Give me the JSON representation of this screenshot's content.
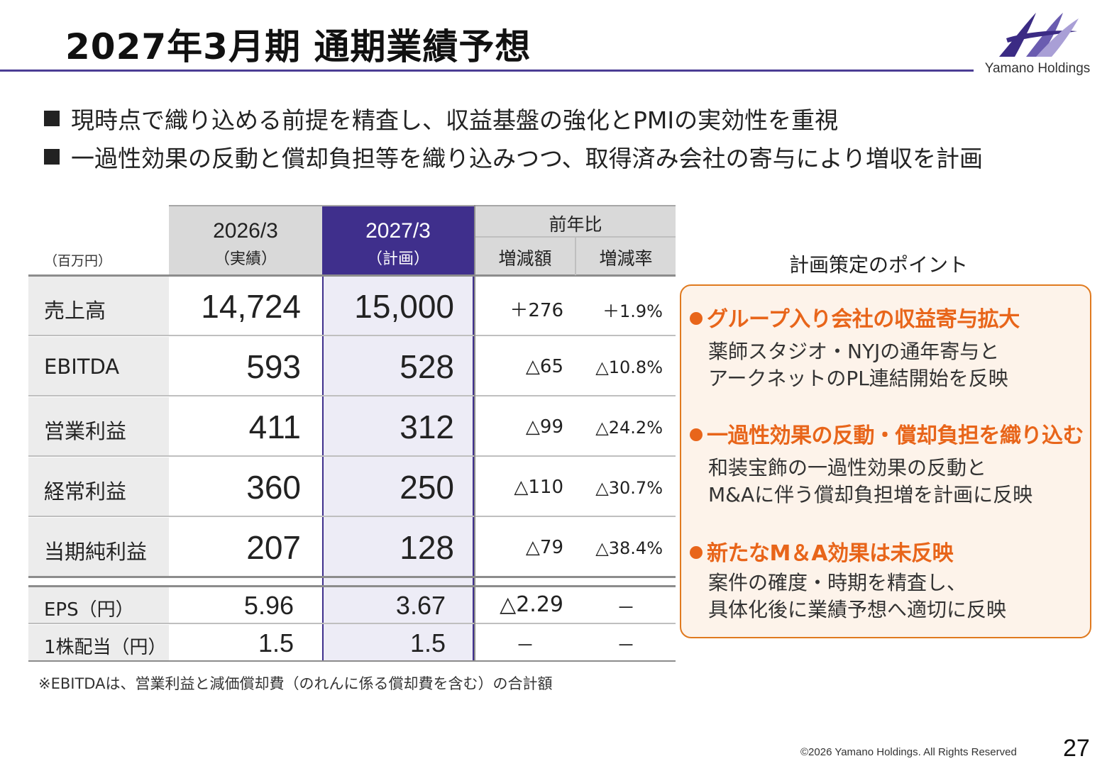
{
  "page": {
    "title": "2027年3月期 通期業績予想",
    "brand": "Yamano Holdings",
    "bullets": [
      "現時点で織り込める前提を精査し、収益基盤の強化とPMIの実効性を重視",
      "一過性効果の反動と償却負担等を織り込みつつ、取得済み会社の寄与により増収を計画"
    ],
    "note": "※EBITDAは、営業利益と減価償却費（のれんに係る償却費を含む）の合計額",
    "copyright": "©2026 Yamano Holdings. All Rights Reserved",
    "page_number": "27"
  },
  "table": {
    "unit": "（百万円）",
    "col_actual_year": "2026/3",
    "col_actual_sub": "（実績）",
    "col_plan_year": "2027/3",
    "col_plan_sub": "（計画）",
    "col_yoy": "前年比",
    "col_diff": "増減額",
    "col_rate": "増減率",
    "rows": [
      {
        "label": "売上高",
        "actual": "14,724",
        "plan": "15,000",
        "diff": "＋276",
        "rate": "＋1.9%"
      },
      {
        "label": "EBITDA",
        "actual": "593",
        "plan": "528",
        "diff": "△65",
        "rate": "△10.8%"
      },
      {
        "label": "営業利益",
        "actual": "411",
        "plan": "312",
        "diff": "△99",
        "rate": "△24.2%"
      },
      {
        "label": "経常利益",
        "actual": "360",
        "plan": "250",
        "diff": "△110",
        "rate": "△30.7%"
      },
      {
        "label": "当期純利益",
        "actual": "207",
        "plan": "128",
        "diff": "△79",
        "rate": "△38.4%"
      }
    ],
    "sub_rows": [
      {
        "label": "EPS（円）",
        "actual": "5.96",
        "plan": "3.67",
        "diff": "△2.29",
        "rate": "－"
      },
      {
        "label": "1株配当（円）",
        "actual": "1.5",
        "plan": "1.5",
        "diff": "－",
        "rate": "－"
      }
    ]
  },
  "points": {
    "title": "計画策定のポイント",
    "items": [
      {
        "heading": "グループ入り会社の収益寄与拡大",
        "lines": [
          "薬師スタジオ・NYJの通年寄与と",
          "アークネットのPL連結開始を反映"
        ]
      },
      {
        "heading": "一過性効果の反動・償却負担を織り込む",
        "lines": [
          "和装宝飾の一過性効果の反動と",
          "M&Aに伴う償却負担増を計画に反映"
        ]
      },
      {
        "heading": "新たなM＆A効果は未反映",
        "lines": [
          "案件の確度・時期を精査し、",
          "具体化後に業績予想へ適切に反映"
        ]
      }
    ]
  },
  "colors": {
    "accent": "#3f2f8c",
    "orange": "#e8651a"
  }
}
